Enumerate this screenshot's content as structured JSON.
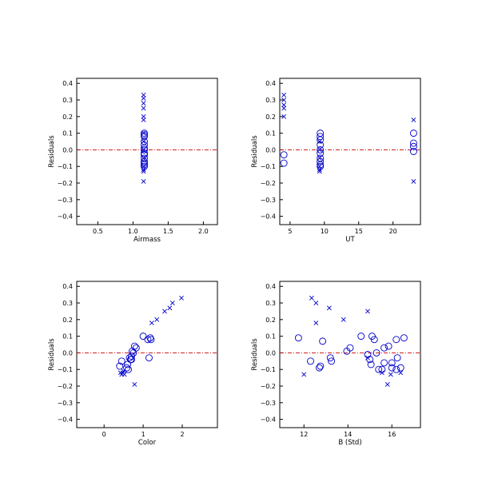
{
  "chart_data": [
    {
      "type": "scatter",
      "xlabel": "Airmass",
      "ylabel": "Residuals",
      "xlim": [
        0.2,
        2.2
      ],
      "ylim": [
        -0.45,
        0.43
      ],
      "xticks": [
        "0.5",
        "1.0",
        "1.5",
        "2.0"
      ],
      "xtick_values": [
        0.5,
        1.0,
        1.5,
        2.0
      ],
      "yticks": [
        "0.4",
        "0.3",
        "0.2",
        "0.1",
        "0.0",
        "−0.1",
        "−0.2",
        "−0.3",
        "−0.4"
      ],
      "ytick_values": [
        0.4,
        0.3,
        0.2,
        0.1,
        0.0,
        -0.1,
        -0.2,
        -0.3,
        -0.4
      ],
      "reference_line_y": 0.0,
      "series": [
        {
          "marker": "x",
          "points": [
            [
              1.15,
              0.33
            ],
            [
              1.15,
              0.31
            ],
            [
              1.15,
              0.28
            ],
            [
              1.15,
              0.25
            ],
            [
              1.15,
              0.2
            ],
            [
              1.15,
              0.18
            ],
            [
              1.15,
              0.1
            ],
            [
              1.15,
              0.05
            ],
            [
              1.15,
              0.0
            ],
            [
              1.15,
              -0.05
            ],
            [
              1.15,
              -0.1
            ],
            [
              1.15,
              -0.12
            ],
            [
              1.15,
              -0.13
            ],
            [
              1.15,
              -0.19
            ]
          ]
        },
        {
          "marker": "o",
          "points": [
            [
              1.16,
              0.1
            ],
            [
              1.16,
              0.09
            ],
            [
              1.16,
              0.08
            ],
            [
              1.16,
              0.05
            ],
            [
              1.16,
              0.03
            ],
            [
              1.16,
              0.01
            ],
            [
              1.16,
              0.0
            ],
            [
              1.16,
              -0.02
            ],
            [
              1.16,
              -0.03
            ],
            [
              1.16,
              -0.05
            ],
            [
              1.16,
              -0.07
            ],
            [
              1.16,
              -0.08
            ],
            [
              1.16,
              -0.09
            ],
            [
              1.16,
              -0.1
            ]
          ]
        }
      ]
    },
    {
      "type": "scatter",
      "xlabel": "UT",
      "ylabel": "Residuals",
      "xlim": [
        3.5,
        24
      ],
      "ylim": [
        -0.45,
        0.43
      ],
      "xticks": [
        "5",
        "10",
        "15",
        "20"
      ],
      "xtick_values": [
        5,
        10,
        15,
        20
      ],
      "yticks": [
        "0.4",
        "0.3",
        "0.2",
        "0.1",
        "0.0",
        "−0.1",
        "−0.2",
        "−0.3",
        "−0.4"
      ],
      "ytick_values": [
        0.4,
        0.3,
        0.2,
        0.1,
        0.0,
        -0.1,
        -0.2,
        -0.3,
        -0.4
      ],
      "reference_line_y": 0.0,
      "series": [
        {
          "marker": "x",
          "points": [
            [
              4.1,
              0.33
            ],
            [
              4.1,
              0.3
            ],
            [
              4.1,
              0.27
            ],
            [
              4.1,
              0.25
            ],
            [
              4.1,
              0.2
            ],
            [
              9.3,
              0.05
            ],
            [
              9.3,
              0.0
            ],
            [
              9.3,
              -0.05
            ],
            [
              9.3,
              -0.1
            ],
            [
              9.3,
              -0.12
            ],
            [
              9.3,
              -0.13
            ],
            [
              23.0,
              0.18
            ],
            [
              23.0,
              -0.19
            ]
          ]
        },
        {
          "marker": "o",
          "points": [
            [
              4.1,
              -0.03
            ],
            [
              4.1,
              -0.08
            ],
            [
              9.4,
              0.1
            ],
            [
              9.4,
              0.08
            ],
            [
              9.4,
              0.06
            ],
            [
              9.4,
              0.03
            ],
            [
              9.4,
              0.0
            ],
            [
              9.4,
              -0.02
            ],
            [
              9.4,
              -0.05
            ],
            [
              9.4,
              -0.07
            ],
            [
              9.4,
              -0.09
            ],
            [
              9.4,
              -0.1
            ],
            [
              23.0,
              0.1
            ],
            [
              23.0,
              0.04
            ],
            [
              23.0,
              0.02
            ],
            [
              23.0,
              -0.01
            ]
          ]
        }
      ]
    },
    {
      "type": "scatter",
      "xlabel": "Color",
      "ylabel": "Residuals",
      "xlim": [
        -0.7,
        2.9
      ],
      "ylim": [
        -0.45,
        0.43
      ],
      "xticks": [
        "0",
        "1",
        "2"
      ],
      "xtick_values": [
        0,
        1,
        2
      ],
      "yticks": [
        "0.4",
        "0.3",
        "0.2",
        "0.1",
        "0.0",
        "−0.1",
        "−0.2",
        "−0.3",
        "−0.4"
      ],
      "ytick_values": [
        0.4,
        0.3,
        0.2,
        0.1,
        0.0,
        -0.1,
        -0.2,
        -0.3,
        -0.4
      ],
      "reference_line_y": 0.0,
      "series": [
        {
          "marker": "x",
          "points": [
            [
              1.98,
              0.33
            ],
            [
              1.75,
              0.3
            ],
            [
              1.68,
              0.27
            ],
            [
              1.55,
              0.25
            ],
            [
              1.35,
              0.2
            ],
            [
              1.22,
              0.18
            ],
            [
              0.42,
              -0.12
            ],
            [
              0.45,
              -0.13
            ],
            [
              0.48,
              -0.12
            ],
            [
              0.5,
              -0.11
            ],
            [
              0.52,
              -0.13
            ],
            [
              0.78,
              -0.19
            ]
          ]
        },
        {
          "marker": "o",
          "points": [
            [
              1.0,
              0.1
            ],
            [
              1.18,
              0.09
            ],
            [
              1.12,
              0.08
            ],
            [
              1.2,
              0.08
            ],
            [
              0.78,
              0.04
            ],
            [
              0.82,
              0.03
            ],
            [
              0.72,
              0.01
            ],
            [
              0.75,
              0.0
            ],
            [
              0.7,
              -0.02
            ],
            [
              0.65,
              -0.03
            ],
            [
              0.68,
              -0.04
            ],
            [
              0.45,
              -0.05
            ],
            [
              0.6,
              -0.07
            ],
            [
              0.4,
              -0.08
            ],
            [
              0.58,
              -0.09
            ],
            [
              0.62,
              -0.1
            ],
            [
              1.15,
              -0.03
            ],
            [
              0.7,
              -0.04
            ]
          ]
        }
      ]
    },
    {
      "type": "scatter",
      "xlabel": "B (Std)",
      "ylabel": "Residuals",
      "xlim": [
        10.9,
        17.3
      ],
      "ylim": [
        -0.45,
        0.43
      ],
      "xticks": [
        "12",
        "14",
        "16"
      ],
      "xtick_values": [
        12,
        14,
        16
      ],
      "yticks": [
        "0.4",
        "0.3",
        "0.2",
        "0.1",
        "0.0",
        "−0.1",
        "−0.2",
        "−0.3",
        "−0.4"
      ],
      "ytick_values": [
        0.4,
        0.3,
        0.2,
        0.1,
        0.0,
        -0.1,
        -0.2,
        -0.3,
        -0.4
      ],
      "reference_line_y": 0.0,
      "series": [
        {
          "marker": "x",
          "points": [
            [
              12.35,
              0.33
            ],
            [
              12.55,
              0.3
            ],
            [
              13.15,
              0.27
            ],
            [
              14.9,
              0.25
            ],
            [
              13.8,
              0.2
            ],
            [
              12.55,
              0.18
            ],
            [
              12.0,
              -0.13
            ],
            [
              15.55,
              -0.12
            ],
            [
              15.95,
              -0.13
            ],
            [
              16.4,
              -0.12
            ],
            [
              15.8,
              -0.19
            ],
            [
              14.9,
              -0.03
            ]
          ]
        },
        {
          "marker": "o",
          "points": [
            [
              11.75,
              0.09
            ],
            [
              12.85,
              0.07
            ],
            [
              14.6,
              0.1
            ],
            [
              15.1,
              0.1
            ],
            [
              15.2,
              0.08
            ],
            [
              16.2,
              0.08
            ],
            [
              16.55,
              0.09
            ],
            [
              14.1,
              0.03
            ],
            [
              13.95,
              0.01
            ],
            [
              15.65,
              0.03
            ],
            [
              15.85,
              0.04
            ],
            [
              15.3,
              0.0
            ],
            [
              14.9,
              -0.01
            ],
            [
              13.2,
              -0.03
            ],
            [
              12.3,
              -0.05
            ],
            [
              15.0,
              -0.04
            ],
            [
              13.25,
              -0.05
            ],
            [
              16.25,
              -0.03
            ],
            [
              16.0,
              -0.06
            ],
            [
              15.05,
              -0.07
            ],
            [
              15.65,
              -0.06
            ],
            [
              12.75,
              -0.08
            ],
            [
              12.7,
              -0.09
            ],
            [
              15.4,
              -0.1
            ],
            [
              16.0,
              -0.09
            ],
            [
              16.4,
              -0.09
            ],
            [
              15.55,
              -0.1
            ],
            [
              16.2,
              -0.1
            ]
          ]
        }
      ]
    }
  ]
}
